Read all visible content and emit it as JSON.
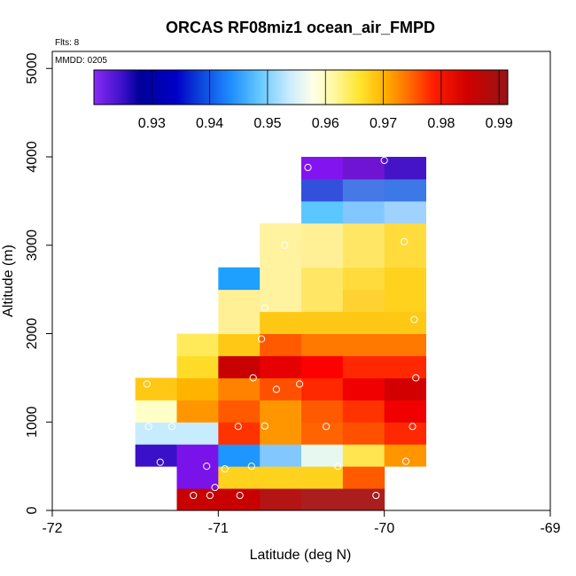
{
  "chart_data": {
    "type": "heatmap",
    "title": "ORCAS RF08miz1 ocean_air_FMPD",
    "annotations": {
      "flights": "Flts: 8",
      "mmdd": "MMDD: 0205"
    },
    "xlabel": "Latitude (deg N)",
    "ylabel": "Altitude (m)",
    "xlim": [
      -72,
      -69
    ],
    "ylim": [
      0,
      5200
    ],
    "xticks": [
      -72,
      -71,
      -70,
      -69
    ],
    "xtick_labels": [
      "-72",
      "-71",
      "-70",
      "-69"
    ],
    "yticks": [
      0,
      1000,
      2000,
      3000,
      4000,
      5000
    ],
    "ytick_labels": [
      "0",
      "1000",
      "2000",
      "3000",
      "4000",
      "5000"
    ],
    "cell_width_deg": 0.25,
    "cell_height_m": 250,
    "colorbar": {
      "range": [
        0.92,
        0.9915
      ],
      "ticks": [
        0.93,
        0.94,
        0.95,
        0.96,
        0.97,
        0.98,
        0.99
      ],
      "tick_labels": [
        "0.93",
        "0.94",
        "0.95",
        "0.96",
        "0.97",
        "0.98",
        "0.99"
      ],
      "position": "top"
    },
    "cells": [
      {
        "lon": -71.25,
        "alt": 0,
        "color": "#c80000"
      },
      {
        "lon": -71.0,
        "alt": 0,
        "color": "#c80000"
      },
      {
        "lon": -70.75,
        "alt": 0,
        "color": "#b41414"
      },
      {
        "lon": -70.5,
        "alt": 0,
        "color": "#aa1e1e"
      },
      {
        "lon": -70.25,
        "alt": 0,
        "color": "#aa1e1e"
      },
      {
        "lon": -71.25,
        "alt": 250,
        "color": "#7a12ea"
      },
      {
        "lon": -71.0,
        "alt": 250,
        "color": "#ffd21e"
      },
      {
        "lon": -70.75,
        "alt": 250,
        "color": "#ffd21e"
      },
      {
        "lon": -70.5,
        "alt": 250,
        "color": "#ffd21e"
      },
      {
        "lon": -70.25,
        "alt": 250,
        "color": "#ff5a00"
      },
      {
        "lon": -71.5,
        "alt": 500,
        "color": "#3a10c8"
      },
      {
        "lon": -71.25,
        "alt": 500,
        "color": "#7a12ea"
      },
      {
        "lon": -71.0,
        "alt": 500,
        "color": "#1e96ff"
      },
      {
        "lon": -70.75,
        "alt": 500,
        "color": "#82c8ff"
      },
      {
        "lon": -70.5,
        "alt": 500,
        "color": "#e6f8ef"
      },
      {
        "lon": -70.25,
        "alt": 500,
        "color": "#ffe650"
      },
      {
        "lon": -70.0,
        "alt": 500,
        "color": "#ff9600"
      },
      {
        "lon": -71.5,
        "alt": 750,
        "color": "#c8ecff"
      },
      {
        "lon": -71.25,
        "alt": 750,
        "color": "#c8ecff"
      },
      {
        "lon": -71.0,
        "alt": 750,
        "color": "#ff3200"
      },
      {
        "lon": -70.75,
        "alt": 750,
        "color": "#ff9600"
      },
      {
        "lon": -70.5,
        "alt": 750,
        "color": "#ff6400"
      },
      {
        "lon": -70.25,
        "alt": 750,
        "color": "#ff5000"
      },
      {
        "lon": -70.0,
        "alt": 750,
        "color": "#ff2800"
      },
      {
        "lon": -71.5,
        "alt": 1000,
        "color": "#ffffc8"
      },
      {
        "lon": -71.25,
        "alt": 1000,
        "color": "#ff9600"
      },
      {
        "lon": -71.0,
        "alt": 1000,
        "color": "#ff5a00"
      },
      {
        "lon": -70.75,
        "alt": 1000,
        "color": "#ff9600"
      },
      {
        "lon": -70.5,
        "alt": 1000,
        "color": "#ff5a00"
      },
      {
        "lon": -70.25,
        "alt": 1000,
        "color": "#ff3200"
      },
      {
        "lon": -70.0,
        "alt": 1000,
        "color": "#f00000"
      },
      {
        "lon": -71.5,
        "alt": 1250,
        "color": "#ffc814"
      },
      {
        "lon": -71.25,
        "alt": 1250,
        "color": "#ffb400"
      },
      {
        "lon": -71.0,
        "alt": 1250,
        "color": "#ff8200"
      },
      {
        "lon": -70.75,
        "alt": 1250,
        "color": "#ff5000"
      },
      {
        "lon": -70.5,
        "alt": 1250,
        "color": "#ff2800"
      },
      {
        "lon": -70.25,
        "alt": 1250,
        "color": "#f00000"
      },
      {
        "lon": -70.0,
        "alt": 1250,
        "color": "#d20000"
      },
      {
        "lon": -71.25,
        "alt": 1500,
        "color": "#ffdc28"
      },
      {
        "lon": -71.0,
        "alt": 1500,
        "color": "#c80000"
      },
      {
        "lon": -70.75,
        "alt": 1500,
        "color": "#e60000"
      },
      {
        "lon": -70.5,
        "alt": 1500,
        "color": "#ff0000"
      },
      {
        "lon": -70.25,
        "alt": 1500,
        "color": "#ff2800"
      },
      {
        "lon": -70.0,
        "alt": 1500,
        "color": "#ff2800"
      },
      {
        "lon": -71.25,
        "alt": 1750,
        "color": "#ffeb5a"
      },
      {
        "lon": -71.0,
        "alt": 1750,
        "color": "#ffc814"
      },
      {
        "lon": -70.75,
        "alt": 1750,
        "color": "#ff5a00"
      },
      {
        "lon": -70.5,
        "alt": 1750,
        "color": "#ff7800"
      },
      {
        "lon": -70.25,
        "alt": 1750,
        "color": "#ff7800"
      },
      {
        "lon": -70.0,
        "alt": 1750,
        "color": "#ff7800"
      },
      {
        "lon": -71.0,
        "alt": 2000,
        "color": "#fff096"
      },
      {
        "lon": -70.75,
        "alt": 2000,
        "color": "#ffc814"
      },
      {
        "lon": -70.5,
        "alt": 2000,
        "color": "#ffc814"
      },
      {
        "lon": -70.25,
        "alt": 2000,
        "color": "#ffc814"
      },
      {
        "lon": -70.0,
        "alt": 2000,
        "color": "#ffc814"
      },
      {
        "lon": -71.0,
        "alt": 2250,
        "color": "#fff096"
      },
      {
        "lon": -70.75,
        "alt": 2250,
        "color": "#fff3a0"
      },
      {
        "lon": -70.5,
        "alt": 2250,
        "color": "#ffe664"
      },
      {
        "lon": -70.25,
        "alt": 2250,
        "color": "#ffd232"
      },
      {
        "lon": -70.0,
        "alt": 2250,
        "color": "#ffd21e"
      },
      {
        "lon": -71.0,
        "alt": 2500,
        "color": "#1ea0ff"
      },
      {
        "lon": -70.75,
        "alt": 2500,
        "color": "#fff3a0"
      },
      {
        "lon": -70.5,
        "alt": 2500,
        "color": "#ffe664"
      },
      {
        "lon": -70.25,
        "alt": 2500,
        "color": "#ffdc3c"
      },
      {
        "lon": -70.0,
        "alt": 2500,
        "color": "#ffd21e"
      },
      {
        "lon": -70.75,
        "alt": 2750,
        "color": "#fff3a0"
      },
      {
        "lon": -70.5,
        "alt": 2750,
        "color": "#fff096"
      },
      {
        "lon": -70.25,
        "alt": 2750,
        "color": "#ffe664"
      },
      {
        "lon": -70.0,
        "alt": 2750,
        "color": "#ffdc3c"
      },
      {
        "lon": -70.75,
        "alt": 3000,
        "color": "#fff3a0"
      },
      {
        "lon": -70.5,
        "alt": 3000,
        "color": "#fff096"
      },
      {
        "lon": -70.25,
        "alt": 3000,
        "color": "#ffe664"
      },
      {
        "lon": -70.0,
        "alt": 3000,
        "color": "#ffdc3c"
      },
      {
        "lon": -70.5,
        "alt": 3250,
        "color": "#5ac8ff"
      },
      {
        "lon": -70.25,
        "alt": 3250,
        "color": "#82c8ff"
      },
      {
        "lon": -70.0,
        "alt": 3250,
        "color": "#a0d2ff"
      },
      {
        "lon": -70.5,
        "alt": 3500,
        "color": "#3250dc"
      },
      {
        "lon": -70.25,
        "alt": 3500,
        "color": "#4678e6"
      },
      {
        "lon": -70.0,
        "alt": 3500,
        "color": "#3c78e6"
      },
      {
        "lon": -70.5,
        "alt": 3750,
        "color": "#8214ef"
      },
      {
        "lon": -70.25,
        "alt": 3750,
        "color": "#6e14d2"
      },
      {
        "lon": -70.0,
        "alt": 3750,
        "color": "#4614c8"
      }
    ],
    "points": [
      {
        "lat": -71.15,
        "alt": 170
      },
      {
        "lat": -71.05,
        "alt": 170
      },
      {
        "lat": -70.87,
        "alt": 170
      },
      {
        "lat": -70.05,
        "alt": 170
      },
      {
        "lat": -71.02,
        "alt": 260
      },
      {
        "lat": -71.07,
        "alt": 500
      },
      {
        "lat": -70.96,
        "alt": 470
      },
      {
        "lat": -70.8,
        "alt": 500
      },
      {
        "lat": -70.28,
        "alt": 500
      },
      {
        "lat": -71.35,
        "alt": 545
      },
      {
        "lat": -69.87,
        "alt": 555
      },
      {
        "lat": -71.42,
        "alt": 950
      },
      {
        "lat": -71.28,
        "alt": 950
      },
      {
        "lat": -70.88,
        "alt": 950
      },
      {
        "lat": -70.72,
        "alt": 955
      },
      {
        "lat": -70.35,
        "alt": 950
      },
      {
        "lat": -69.83,
        "alt": 950
      },
      {
        "lat": -71.43,
        "alt": 1430
      },
      {
        "lat": -70.79,
        "alt": 1500
      },
      {
        "lat": -70.65,
        "alt": 1370
      },
      {
        "lat": -70.51,
        "alt": 1430
      },
      {
        "lat": -69.81,
        "alt": 1500
      },
      {
        "lat": -70.74,
        "alt": 1940
      },
      {
        "lat": -70.72,
        "alt": 2290
      },
      {
        "lat": -69.82,
        "alt": 2160
      },
      {
        "lat": -70.6,
        "alt": 3000
      },
      {
        "lat": -69.88,
        "alt": 3040
      },
      {
        "lat": -70.46,
        "alt": 3880
      },
      {
        "lat": -70.0,
        "alt": 3960
      }
    ]
  }
}
